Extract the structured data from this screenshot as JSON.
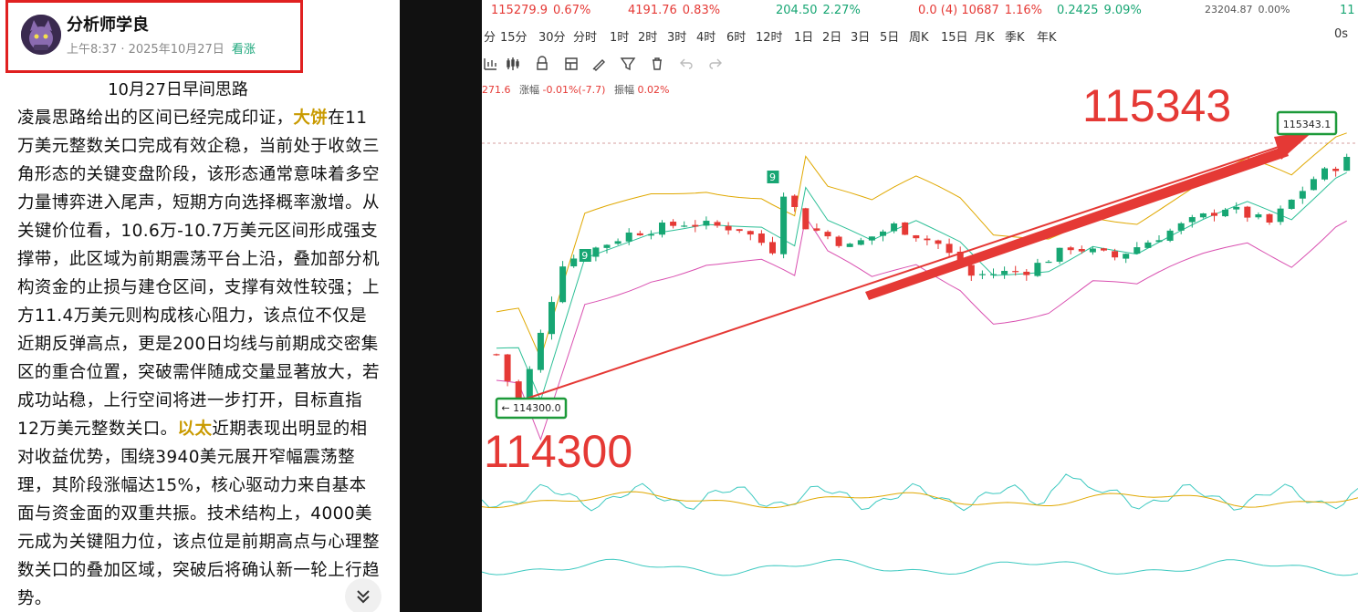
{
  "author": {
    "name": "分析师学良",
    "time": "上午8:37",
    "date": "2025年10月27日",
    "tag": "看涨"
  },
  "article": {
    "title": "10月27日早间思路",
    "segments": [
      {
        "text": "凌晨思路给出的区间已经完成印证，",
        "hl": false
      },
      {
        "text": "大饼",
        "hl": true
      },
      {
        "text": "在11万美元整数关口完成有效企稳，当前处于收敛三角形态的关键变盘阶段，该形态通常意味着多空力量博弈进入尾声，短期方向选择概率激增。从关键价位看，10.6万-10.7万美元区间形成强支撑带，此区域为前期震荡平台上沿，叠加部分机构资金的止损与建仓区间，支撑有效性较强；上方11.4万美元则构成核心阻力，该点位不仅是近期反弹高点，更是200日均线与前期成交密集区的重合位置，突破需伴随成交量显著放大，若成功站稳，上行空间将进一步打开，目标直指12万美元整数关口。",
        "hl": false
      },
      {
        "text": "以太",
        "hl": true
      },
      {
        "text": "近期表现出明显的相对收益优势，围绕3940美元展开窄幅震荡整理，其阶段涨幅达15%，核心驱动力来自基本面与资金面的双重共振。技术结构上，4000美元成为关键阻力位，该点位是前期高点与心理整数关口的叠加区域，突破后将确认新一轮上行趋势。",
        "hl": false
      }
    ]
  },
  "tickers": [
    {
      "price": "115279.9",
      "change": "0.67%",
      "color": "red"
    },
    {
      "price": "4191.76",
      "change": "0.83%",
      "color": "red"
    },
    {
      "price": "204.50",
      "change": "2.27%",
      "color": "green"
    },
    {
      "price": "0.0 (4) 10687",
      "change": "1.16%",
      "color": "red"
    },
    {
      "price": "0.2425",
      "change": "9.09%",
      "color": "green"
    },
    {
      "price": "23204.87",
      "change": "0.00%",
      "color": "gray"
    },
    {
      "price": "11",
      "change": "",
      "color": "green"
    }
  ],
  "timeframes": [
    "分",
    "15分",
    "30分",
    "分时",
    "1时",
    "2时",
    "3时",
    "4时",
    "6时",
    "12时",
    "1日",
    "2日",
    "3日",
    "5日",
    "周K",
    "15日",
    "月K",
    "季K",
    "年K"
  ],
  "timeframe_right": "0s",
  "toolbar_icons": [
    "indicator-icon",
    "candle-settings-icon",
    "lock-icon",
    "layout-icon",
    "draw-icon",
    "filter-icon",
    "trash-icon",
    "undo-icon",
    "redo-icon"
  ],
  "stats": {
    "prefix": "271.6",
    "change_label": "涨幅",
    "change_value": "-0.01%(-7.7)",
    "amp_label": "振幅",
    "amp_value": "0.02%"
  },
  "annotations": {
    "high": "115343",
    "high_box": "115343.1",
    "low": "114300",
    "low_box": "← 114300.0",
    "td_count": "9"
  },
  "colors": {
    "up": "#17a673",
    "down": "#e53935",
    "accent_red": "#e53935",
    "box_green": "#1d9a3a",
    "boll_upper": "#e0a800",
    "boll_mid": "#2cbf96",
    "boll_lower": "#d94fb0",
    "ind_cyan": "#3dc9c0",
    "ind_yellow": "#e0a800"
  }
}
